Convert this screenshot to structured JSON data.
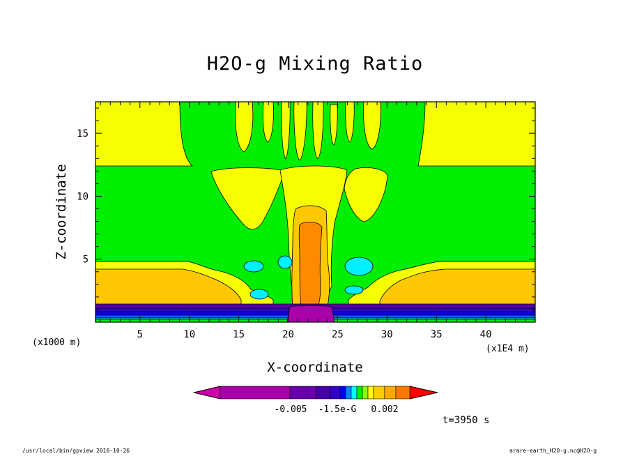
{
  "chart_data": {
    "type": "contour",
    "title": "H2O-g Mixing Ratio",
    "xlabel": "X-coordinate",
    "ylabel": "Z-coordinate",
    "x_unit": "(x1E4 m)",
    "y_unit": "(x1000 m)",
    "x_ticks": [
      "5",
      "10",
      "15",
      "20",
      "25",
      "30",
      "35",
      "40"
    ],
    "y_ticks": [
      "5",
      "10",
      "15"
    ],
    "xlim": [
      0.5,
      45
    ],
    "ylim": [
      0,
      17.5
    ],
    "colorbar": {
      "labels": [
        "-0.005",
        "-1.5e-G",
        "0.002"
      ],
      "colors": [
        "#cc00aa",
        "#aa00aa",
        "#6600aa",
        "#4400aa",
        "#3300cc",
        "#0000ff",
        "#0088ff",
        "#00ffff",
        "#00ee00",
        "#88ff00",
        "#ffff00",
        "#ffcc00",
        "#ffaa00",
        "#ff7700",
        "#ff0000"
      ]
    },
    "colors": {
      "background": "#00ee00",
      "yellow": "#f5ff00",
      "gold": "#ffc800",
      "orange": "#ff8a00",
      "cyan": "#00f0ff",
      "blue": "#0000ee",
      "purple": "#5a00aa"
    },
    "time": "t=3950 s"
  },
  "footer": {
    "left": "/usr/local/bin/gpview 2010-10-26",
    "right": "arare-earth_H2O-g.nc@H2O-g"
  }
}
